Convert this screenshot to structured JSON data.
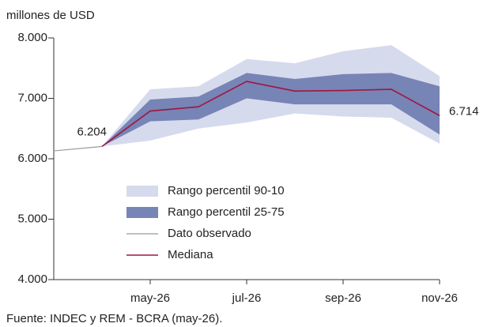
{
  "chart_data": {
    "type": "fan",
    "y_label": "millones de USD",
    "source": "Fuente: INDEC y REM - BCRA (may-26).",
    "categories": [
      null,
      null,
      "may-26",
      null,
      "jul-26",
      null,
      "sep-26",
      null,
      "nov-26"
    ],
    "ylim": [
      4000,
      8000
    ],
    "yticks": [
      {
        "value": 4000,
        "label": "4.000"
      },
      {
        "value": 5000,
        "label": "5.000"
      },
      {
        "value": 6000,
        "label": "6.000"
      },
      {
        "value": 7000,
        "label": "7.000"
      },
      {
        "value": 8000,
        "label": "8.000"
      }
    ],
    "bands": [
      {
        "name": "Rango percentil 90-10",
        "color": "#d6daed",
        "low": [
          null,
          6204,
          6300,
          6500,
          6600,
          6750,
          6700,
          6680,
          6250
        ],
        "high": [
          null,
          6204,
          7150,
          7200,
          7650,
          7580,
          7780,
          7880,
          7370
        ]
      },
      {
        "name": "Rango percentil 25-75",
        "color": "#7784b6",
        "low": [
          null,
          6204,
          6620,
          6650,
          7000,
          6900,
          6900,
          6900,
          6400
        ],
        "high": [
          null,
          6204,
          6980,
          7030,
          7420,
          7320,
          7400,
          7420,
          7200
        ]
      }
    ],
    "series": [
      {
        "name": "Dato observado",
        "color": "#9a9a9a",
        "values": [
          6130,
          6204,
          null,
          null,
          null,
          null,
          null,
          null,
          null
        ],
        "value_labels": [
          null,
          "6.204",
          null,
          null,
          null,
          null,
          null,
          null,
          null
        ]
      },
      {
        "name": "Mediana",
        "color": "#a0163f",
        "values": [
          null,
          6204,
          6790,
          6860,
          7280,
          7120,
          7130,
          7150,
          6714
        ],
        "value_labels": [
          null,
          null,
          null,
          null,
          null,
          null,
          null,
          null,
          "6.714"
        ]
      }
    ]
  }
}
